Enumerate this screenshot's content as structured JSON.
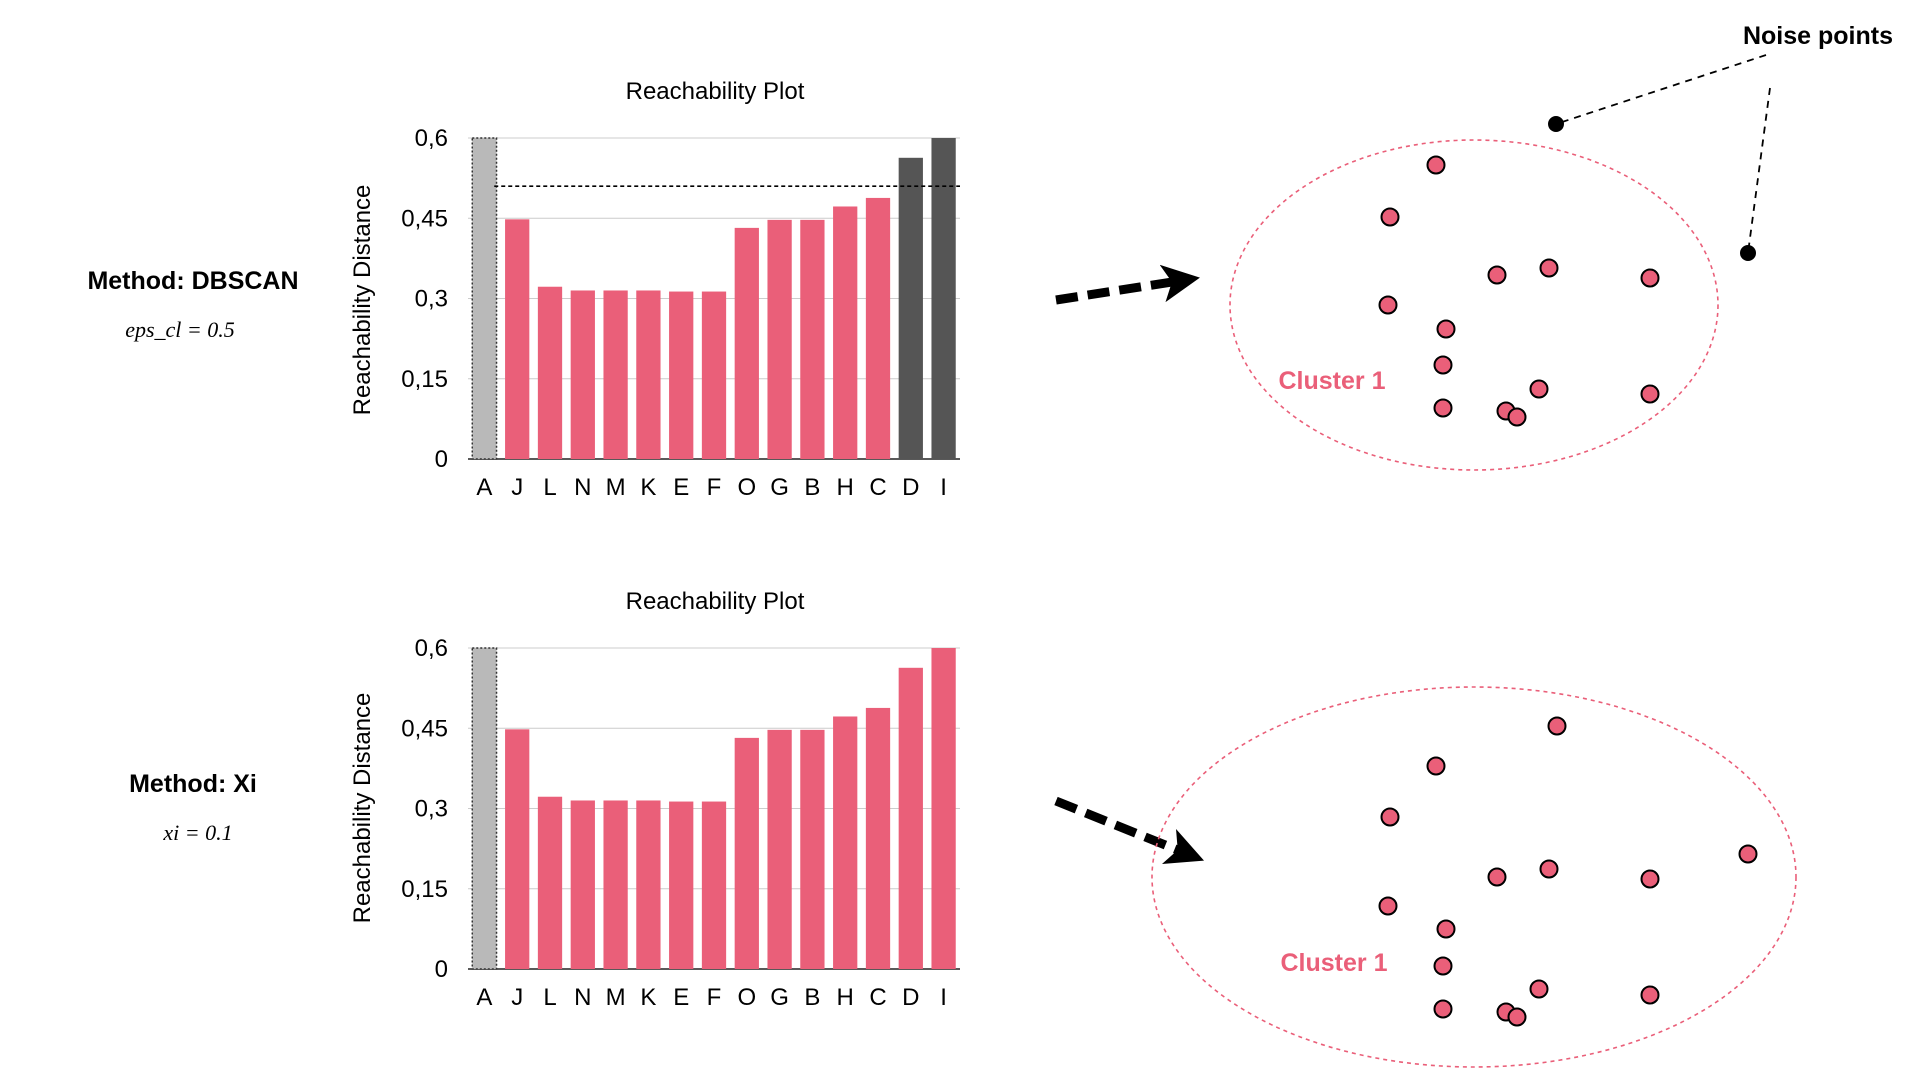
{
  "colors": {
    "accent": "#ea5f79",
    "dark": "#555555",
    "undefined_bar": "#b9b9b9",
    "grid": "#cccccc",
    "ellipse": "#ea5f79"
  },
  "panels": [
    {
      "method_title": "Method: DBSCAN",
      "param_label": "eps_cl = 0.5",
      "cluster_label": "Cluster 1"
    },
    {
      "method_title": "Method: Xi",
      "param_label": "xi = 0.1",
      "cluster_label": "Cluster 1"
    }
  ],
  "noise_label": "Noise points",
  "chart_data": [
    {
      "type": "bar",
      "title": "Reachability Plot",
      "ylabel": "Reachability Distance",
      "xlabel": "",
      "ylim": [
        0,
        0.6
      ],
      "y_ticks": [
        "0",
        "0,15",
        "0,3",
        "0,45",
        "0,6"
      ],
      "y_tick_values": [
        0,
        0.15,
        0.3,
        0.45,
        0.6
      ],
      "categories": [
        "A",
        "J",
        "L",
        "N",
        "M",
        "K",
        "E",
        "F",
        "O",
        "G",
        "B",
        "H",
        "C",
        "D",
        "I"
      ],
      "values": [
        0.6,
        0.448,
        0.322,
        0.315,
        0.315,
        0.315,
        0.313,
        0.313,
        0.432,
        0.447,
        0.447,
        0.472,
        0.488,
        0.563,
        0.6
      ],
      "bar_status": [
        "undefined",
        "cluster",
        "cluster",
        "cluster",
        "cluster",
        "cluster",
        "cluster",
        "cluster",
        "cluster",
        "cluster",
        "cluster",
        "cluster",
        "cluster",
        "noise",
        "noise"
      ],
      "threshold": 0.51
    },
    {
      "type": "bar",
      "title": "Reachability Plot",
      "ylabel": "Reachability Distance",
      "xlabel": "",
      "ylim": [
        0,
        0.6
      ],
      "y_ticks": [
        "0",
        "0,15",
        "0,3",
        "0,45",
        "0,6"
      ],
      "y_tick_values": [
        0,
        0.15,
        0.3,
        0.45,
        0.6
      ],
      "categories": [
        "A",
        "J",
        "L",
        "N",
        "M",
        "K",
        "E",
        "F",
        "O",
        "G",
        "B",
        "H",
        "C",
        "D",
        "I"
      ],
      "values": [
        0.6,
        0.448,
        0.322,
        0.315,
        0.315,
        0.315,
        0.313,
        0.313,
        0.432,
        0.447,
        0.447,
        0.472,
        0.488,
        0.563,
        0.6
      ],
      "bar_status": [
        "undefined",
        "cluster",
        "cluster",
        "cluster",
        "cluster",
        "cluster",
        "cluster",
        "cluster",
        "cluster",
        "cluster",
        "cluster",
        "cluster",
        "cluster",
        "cluster",
        "cluster"
      ],
      "threshold": null
    }
  ]
}
